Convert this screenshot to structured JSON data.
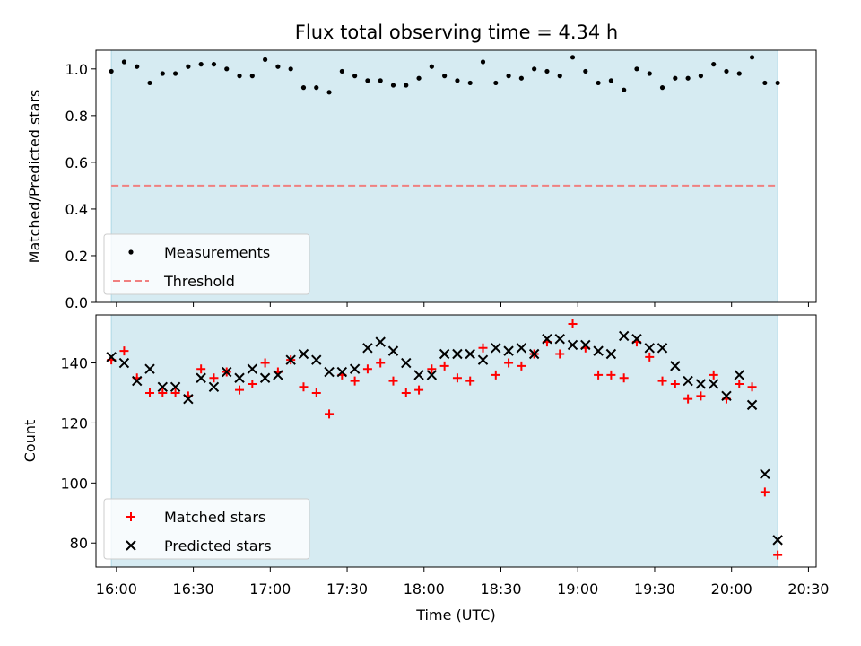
{
  "figure_title": "Flux total observing time = 4.34 h",
  "chart_data": [
    {
      "type": "scatter",
      "title": "Flux total observing time = 4.34 h",
      "xlabel": "",
      "ylabel": "Matched/Predicted stars",
      "ylim": [
        0,
        1.08
      ],
      "yticks": [
        0.0,
        0.2,
        0.4,
        0.6,
        0.8,
        1.0
      ],
      "ytick_labels": [
        "0.0",
        "0.2",
        "0.4",
        "0.6",
        "0.8",
        "1.0"
      ],
      "shaded_span": [
        "15:58",
        "20:18"
      ],
      "shaded_color": "#add8e6",
      "threshold": 0.5,
      "threshold_color": "#f08080",
      "legend": {
        "position": "lower-left",
        "entries": [
          "Measurements",
          "Threshold"
        ]
      },
      "series": [
        {
          "name": "Measurements",
          "color": "#000000",
          "x": [
            "15:58",
            "16:03",
            "16:08",
            "16:13",
            "16:18",
            "16:23",
            "16:28",
            "16:33",
            "16:38",
            "16:43",
            "16:48",
            "16:53",
            "16:58",
            "17:03",
            "17:08",
            "17:13",
            "17:18",
            "17:23",
            "17:28",
            "17:33",
            "17:38",
            "17:43",
            "17:48",
            "17:53",
            "17:58",
            "18:03",
            "18:08",
            "18:13",
            "18:18",
            "18:23",
            "18:28",
            "18:33",
            "18:38",
            "18:43",
            "18:48",
            "18:53",
            "18:58",
            "19:03",
            "19:08",
            "19:13",
            "19:18",
            "19:23",
            "19:28",
            "19:33",
            "19:38",
            "19:43",
            "19:48",
            "19:53",
            "19:58",
            "20:03",
            "20:08",
            "20:13",
            "20:18"
          ],
          "values": [
            0.99,
            1.03,
            1.01,
            0.94,
            0.98,
            0.98,
            1.01,
            1.02,
            1.02,
            1.0,
            0.97,
            0.97,
            1.04,
            1.01,
            1.0,
            0.92,
            0.92,
            0.9,
            0.99,
            0.97,
            0.95,
            0.95,
            0.93,
            0.93,
            0.96,
            1.01,
            0.97,
            0.95,
            0.94,
            1.03,
            0.94,
            0.97,
            0.96,
            1.0,
            0.99,
            0.97,
            1.05,
            0.99,
            0.94,
            0.95,
            0.91,
            1.0,
            0.98,
            0.92,
            0.96,
            0.96,
            0.97,
            1.02,
            0.99,
            0.98,
            1.05,
            0.94,
            0.94
          ]
        }
      ]
    },
    {
      "type": "scatter",
      "title": "",
      "xlabel": "Time (UTC)",
      "ylabel": "Count",
      "ylim": [
        72,
        156
      ],
      "yticks": [
        80,
        100,
        120,
        140
      ],
      "ytick_labels": [
        "80",
        "100",
        "120",
        "140"
      ],
      "xticks": [
        "16:00",
        "16:30",
        "17:00",
        "17:30",
        "18:00",
        "18:30",
        "19:00",
        "19:30",
        "20:00",
        "20:30"
      ],
      "shaded_span": [
        "15:58",
        "20:18"
      ],
      "shaded_color": "#add8e6",
      "legend": {
        "position": "lower-left",
        "entries": [
          "Matched stars",
          "Predicted stars"
        ]
      },
      "series": [
        {
          "name": "Matched stars",
          "marker": "plus",
          "color": "#ff0000",
          "x": [
            "15:58",
            "16:03",
            "16:08",
            "16:13",
            "16:18",
            "16:23",
            "16:28",
            "16:33",
            "16:38",
            "16:43",
            "16:48",
            "16:53",
            "16:58",
            "17:03",
            "17:08",
            "17:13",
            "17:18",
            "17:23",
            "17:28",
            "17:33",
            "17:38",
            "17:43",
            "17:48",
            "17:53",
            "17:58",
            "18:03",
            "18:08",
            "18:13",
            "18:18",
            "18:23",
            "18:28",
            "18:33",
            "18:38",
            "18:43",
            "18:48",
            "18:53",
            "18:58",
            "19:03",
            "19:08",
            "19:13",
            "19:18",
            "19:23",
            "19:28",
            "19:33",
            "19:38",
            "19:43",
            "19:48",
            "19:53",
            "19:58",
            "20:03",
            "20:08",
            "20:13",
            "20:18"
          ],
          "values": [
            141,
            144,
            135,
            130,
            130,
            130,
            129,
            138,
            135,
            137,
            131,
            133,
            140,
            137,
            141,
            132,
            130,
            123,
            136,
            134,
            138,
            140,
            134,
            130,
            131,
            138,
            139,
            135,
            134,
            145,
            136,
            140,
            139,
            143,
            147,
            143,
            153,
            145,
            136,
            136,
            135,
            147,
            142,
            134,
            133,
            128,
            129,
            136,
            128,
            133,
            132,
            97,
            76
          ]
        },
        {
          "name": "Predicted stars",
          "marker": "x",
          "color": "#000000",
          "x": [
            "15:58",
            "16:03",
            "16:08",
            "16:13",
            "16:18",
            "16:23",
            "16:28",
            "16:33",
            "16:38",
            "16:43",
            "16:48",
            "16:53",
            "16:58",
            "17:03",
            "17:08",
            "17:13",
            "17:18",
            "17:23",
            "17:28",
            "17:33",
            "17:38",
            "17:43",
            "17:48",
            "17:53",
            "17:58",
            "18:03",
            "18:08",
            "18:13",
            "18:18",
            "18:23",
            "18:28",
            "18:33",
            "18:38",
            "18:43",
            "18:48",
            "18:53",
            "18:58",
            "19:03",
            "19:08",
            "19:13",
            "19:18",
            "19:23",
            "19:28",
            "19:33",
            "19:38",
            "19:43",
            "19:48",
            "19:53",
            "19:58",
            "20:03",
            "20:08",
            "20:13",
            "20:18"
          ],
          "values": [
            142,
            140,
            134,
            138,
            132,
            132,
            128,
            135,
            132,
            137,
            135,
            138,
            135,
            136,
            141,
            143,
            141,
            137,
            137,
            138,
            145,
            147,
            144,
            140,
            136,
            136,
            143,
            143,
            143,
            141,
            145,
            144,
            145,
            143,
            148,
            148,
            146,
            146,
            144,
            143,
            149,
            148,
            145,
            145,
            139,
            134,
            133,
            133,
            129,
            136,
            126,
            103,
            81
          ]
        }
      ]
    }
  ]
}
